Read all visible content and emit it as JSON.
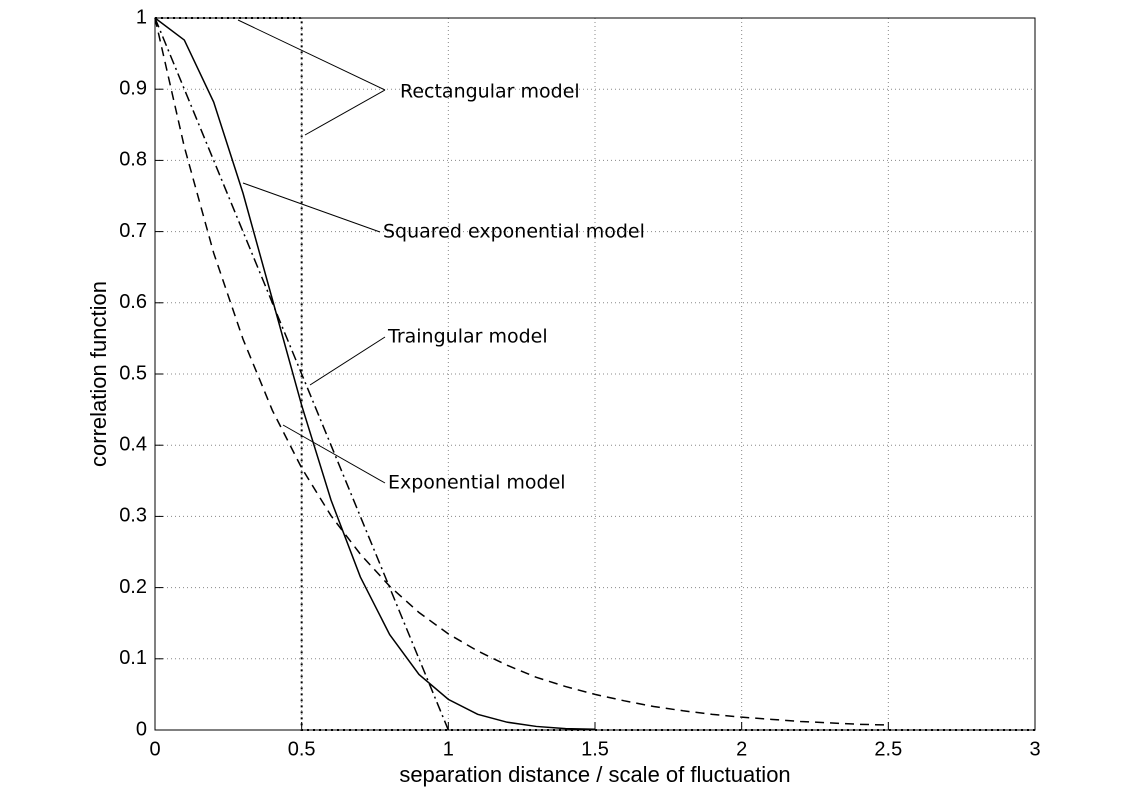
{
  "chart_data": {
    "type": "line",
    "xlabel": "separation distance / scale of fluctuation",
    "ylabel": "correlation function",
    "x": [
      0,
      0.1,
      0.2,
      0.3,
      0.4,
      0.5,
      0.6,
      0.7,
      0.8,
      0.9,
      1.0,
      1.1,
      1.2,
      1.3,
      1.4,
      1.5,
      1.6,
      1.7,
      1.8,
      1.9,
      2.0,
      2.1,
      2.2,
      2.3,
      2.4,
      2.5,
      2.6,
      2.7,
      2.8,
      2.9,
      3.0
    ],
    "series": [
      {
        "name": "Rectangular model",
        "color": "#000000",
        "style": "dotted",
        "x": [
          0,
          0.5,
          0.5,
          3
        ],
        "values": [
          1,
          1,
          0,
          0
        ]
      },
      {
        "name": "Squared exponential model",
        "color": "#000000",
        "style": "solid",
        "values": [
          1,
          0.969,
          0.882,
          0.754,
          0.605,
          0.456,
          0.323,
          0.215,
          0.134,
          0.078,
          0.043,
          0.022,
          0.011,
          0.005,
          0.002,
          0.001,
          null,
          null,
          null,
          null,
          null,
          null,
          null,
          null,
          null,
          null,
          null,
          null,
          null,
          null,
          null
        ]
      },
      {
        "name": "Traingular model",
        "color": "#000000",
        "style": "dashdot",
        "values": [
          1,
          0.9,
          0.8,
          0.7,
          0.6,
          0.5,
          0.4,
          0.3,
          0.2,
          0.1,
          0,
          null,
          null,
          null,
          null,
          null,
          null,
          null,
          null,
          null,
          null,
          null,
          null,
          null,
          null,
          null,
          null,
          null,
          null,
          null,
          null
        ]
      },
      {
        "name": "Exponential model",
        "color": "#000000",
        "style": "dashed",
        "values": [
          1,
          0.819,
          0.67,
          0.549,
          0.449,
          0.368,
          0.301,
          0.247,
          0.202,
          0.165,
          0.135,
          0.111,
          0.091,
          0.074,
          0.061,
          0.05,
          0.041,
          0.033,
          0.027,
          0.022,
          0.018,
          0.015,
          0.012,
          0.01,
          0.008,
          0.007,
          null,
          null,
          null,
          null,
          null
        ]
      }
    ],
    "xlim": [
      0,
      3
    ],
    "ylim": [
      0,
      1
    ],
    "xticks": [
      0,
      0.5,
      1,
      1.5,
      2,
      2.5,
      3
    ],
    "yticks": [
      0,
      0.1,
      0.2,
      0.3,
      0.4,
      0.5,
      0.6,
      0.7,
      0.8,
      0.9,
      1
    ],
    "grid": true
  }
}
